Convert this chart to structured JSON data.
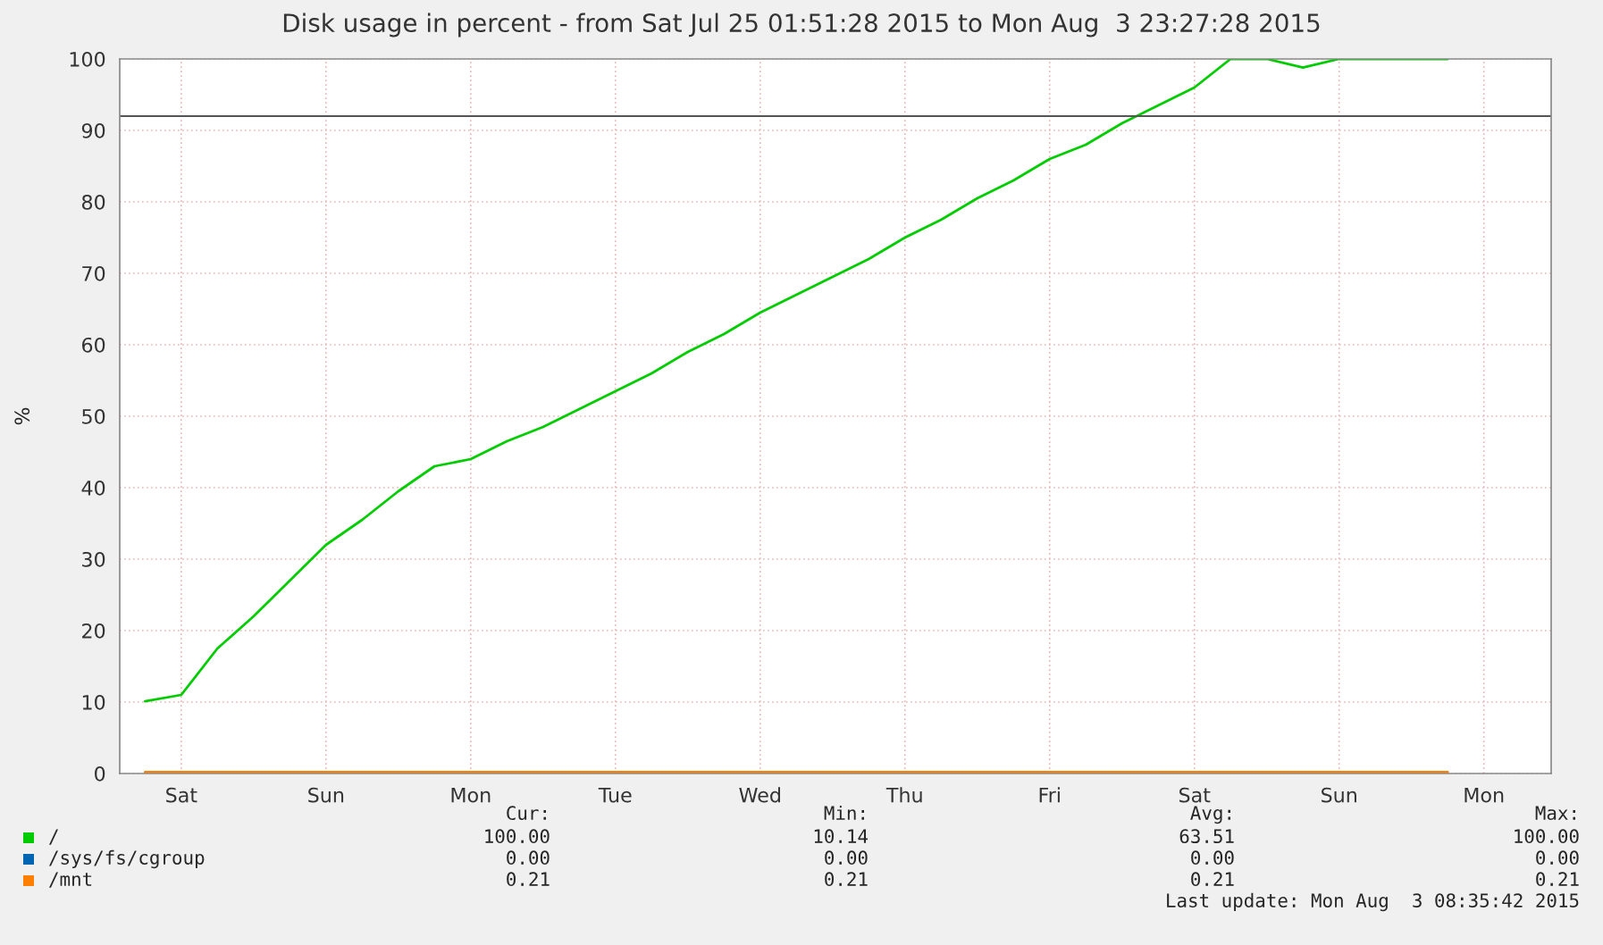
{
  "chart_data": {
    "type": "line",
    "title": "Disk usage in percent - from Sat Jul 25 01:51:28 2015 to Mon Aug  3 23:27:28 2015",
    "ylabel": "%",
    "categories": [
      null,
      "Sat",
      null,
      null,
      null,
      "Sun",
      null,
      null,
      null,
      "Mon",
      null,
      null,
      null,
      "Tue",
      null,
      null,
      null,
      "Wed",
      null,
      null,
      null,
      "Thu",
      null,
      null,
      null,
      "Fri",
      null,
      null,
      null,
      "Sat",
      null,
      null,
      null,
      "Sun",
      null,
      null,
      null,
      "Mon",
      null
    ],
    "ylim": [
      0,
      100
    ],
    "yticks": [
      0,
      10,
      20,
      30,
      40,
      50,
      60,
      70,
      80,
      90,
      100
    ],
    "grid": true,
    "legend": "bottom",
    "ref_lines": [
      {
        "axis": "y",
        "value": 92,
        "color": "#555555"
      }
    ],
    "series": [
      {
        "name": "/",
        "color": "#00cc00",
        "values": [
          10.1,
          11,
          17.5,
          22,
          27,
          32,
          35.5,
          39.5,
          43,
          44,
          46.5,
          48.5,
          51,
          53.5,
          56,
          59,
          61.5,
          64.5,
          67,
          69.5,
          72,
          75,
          77.5,
          80.5,
          83,
          86,
          88,
          91,
          93.5,
          96,
          100,
          100,
          98.8,
          100,
          100,
          100,
          100,
          null,
          null
        ]
      },
      {
        "name": "/sys/fs/cgroup",
        "color": "#0066b3",
        "values": [
          null,
          null,
          null,
          null,
          null,
          null,
          null,
          null,
          null,
          null,
          null,
          null,
          null,
          null,
          null,
          null,
          null,
          null,
          null,
          null,
          null,
          null,
          null,
          null,
          null,
          null,
          null,
          null,
          null,
          null,
          null,
          null,
          null,
          null,
          null,
          null,
          null,
          null,
          null
        ]
      },
      {
        "name": "/mnt",
        "color": "#ff8000",
        "values": [
          0.2,
          0.2,
          0.2,
          0.2,
          0.2,
          0.2,
          0.2,
          0.2,
          0.2,
          0.2,
          0.2,
          0.2,
          0.2,
          0.2,
          0.2,
          0.2,
          0.2,
          0.2,
          0.2,
          0.2,
          0.2,
          0.2,
          0.2,
          0.2,
          0.2,
          0.2,
          0.2,
          0.2,
          0.2,
          0.2,
          0.2,
          0.2,
          0.2,
          0.2,
          0.2,
          0.2,
          0.2,
          null,
          null
        ]
      }
    ],
    "annotations": [
      "Cur:",
      "Min:",
      "Avg:",
      "Max:",
      "100.00",
      "10.14",
      "63.51",
      "100.00",
      "0.00",
      "0.00",
      "0.00",
      "0.00",
      "0.21",
      "0.21",
      "0.21",
      "0.21",
      "Last update: Mon Aug  3 08:35:42 2015"
    ]
  }
}
